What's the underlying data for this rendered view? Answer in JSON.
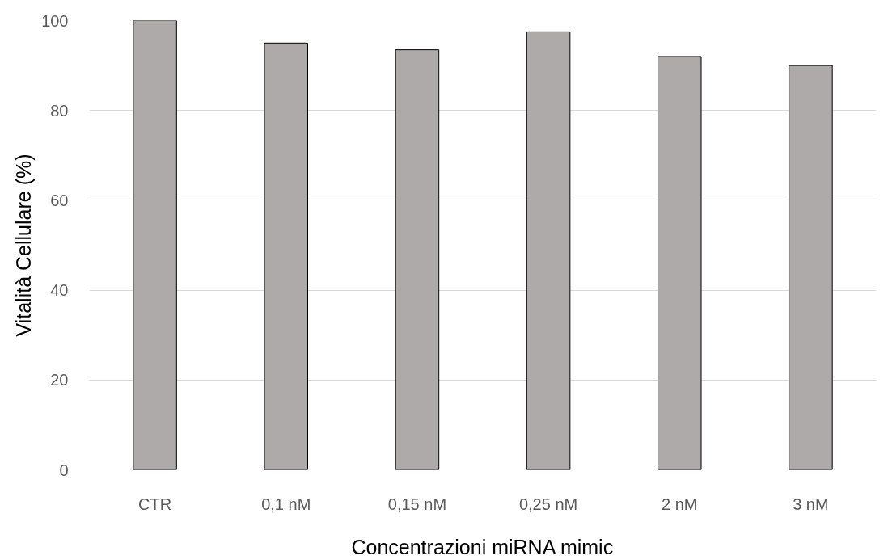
{
  "chart_data": {
    "type": "bar",
    "xlabel": "Concentrazioni miRNA mimic",
    "ylabel": "Vitalità Cellulare (%)",
    "categories": [
      "CTR",
      "0,1 nM",
      "0,15 nM",
      "0,25 nM",
      "2 nM",
      "3 nM"
    ],
    "values": [
      100,
      95,
      93.5,
      97.5,
      92,
      90
    ],
    "color": "#aeaaaa",
    "ylim": [
      0,
      100
    ],
    "yticks": [
      0,
      20,
      40,
      60,
      80,
      100
    ],
    "grid": "y"
  }
}
